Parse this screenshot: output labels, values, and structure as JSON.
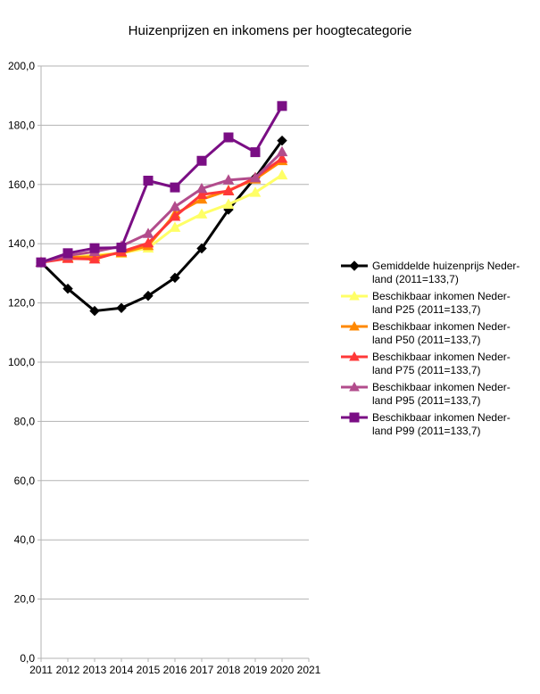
{
  "chart_data": {
    "type": "line",
    "title": "Huizenprijzen en inkomens per hoogtecategorie",
    "xlabel": "",
    "ylabel": "",
    "x": [
      2011,
      2012,
      2013,
      2014,
      2015,
      2016,
      2017,
      2018,
      2019,
      2020
    ],
    "x_ticks": [
      "2011",
      "2012",
      "2013",
      "2014",
      "2015",
      "2016",
      "2017",
      "2018",
      "2019",
      "2020",
      "2021"
    ],
    "xlim": [
      2011,
      2021
    ],
    "ylim": [
      0,
      200
    ],
    "y_ticks": [
      "0,0",
      "20,0",
      "40,0",
      "60,0",
      "80,0",
      "100,0",
      "120,0",
      "140,0",
      "160,0",
      "180,0",
      "200,0"
    ],
    "grid": "horizontal",
    "legend_position": "right",
    "series": [
      {
        "name": "Gemiddelde huizenprijs Nederland (2011=133,7)",
        "legend_lines": [
          "Gemiddelde huizenprijs Neder-",
          "land (2011=133,7)"
        ],
        "color": "#000000",
        "marker": "diamond",
        "values": [
          133.7,
          124.8,
          117.3,
          118.3,
          122.4,
          128.5,
          138.4,
          151.5,
          162.3,
          174.8
        ]
      },
      {
        "name": "Beschikbaar inkomen Nederland P25 (2011=133,7)",
        "legend_lines": [
          "Beschikbaar inkomen Neder-",
          "land P25 (2011=133,7)"
        ],
        "color": "#ffff66",
        "marker": "triangle",
        "values": [
          133.7,
          135.3,
          136.2,
          136.8,
          138.5,
          145.5,
          150.0,
          153.3,
          157.3,
          163.2
        ]
      },
      {
        "name": "Beschikbaar inkomen Nederland P50 (2011=133,7)",
        "legend_lines": [
          "Beschikbaar inkomen Neder-",
          "land P50 (2011=133,7)"
        ],
        "color": "#ff8800",
        "marker": "triangle",
        "values": [
          133.7,
          135.3,
          135.6,
          136.9,
          139.3,
          150.0,
          155.0,
          158.0,
          161.8,
          168.0
        ]
      },
      {
        "name": "Beschikbaar inkomen Nederland P75 (2011=133,7)",
        "legend_lines": [
          "Beschikbaar inkomen Neder-",
          "land P75 (2011=133,7)"
        ],
        "color": "#ff3838",
        "marker": "triangle",
        "values": [
          133.7,
          135.0,
          134.8,
          137.3,
          140.2,
          149.2,
          156.6,
          157.8,
          162.3,
          168.8
        ]
      },
      {
        "name": "Beschikbaar inkomen Nederland P95 (2011=133,7)",
        "legend_lines": [
          "Beschikbaar inkomen Neder-",
          "land P95 (2011=133,7)"
        ],
        "color": "#b24c8c",
        "marker": "triangle",
        "values": [
          133.7,
          136.0,
          137.3,
          139.2,
          143.4,
          152.5,
          158.6,
          161.5,
          162.2,
          171.0
        ]
      },
      {
        "name": "Beschikbaar inkomen Nederland P99 (2011=133,7)",
        "legend_lines": [
          "Beschikbaar inkomen Neder-",
          "land P99 (2011=133,7)"
        ],
        "color": "#7a0e84",
        "marker": "square",
        "values": [
          133.7,
          136.8,
          138.5,
          138.7,
          161.3,
          159.0,
          168.0,
          175.9,
          170.9,
          186.5
        ]
      }
    ]
  }
}
